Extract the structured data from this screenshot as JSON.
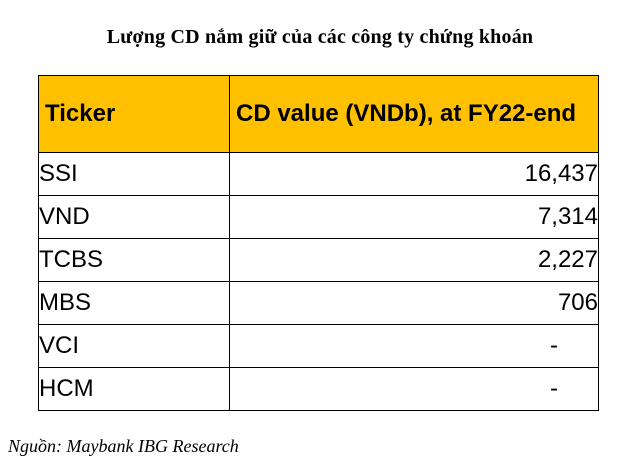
{
  "title": "Lượng CD nắm giữ của các công ty chứng khoán",
  "table": {
    "headers": [
      "Ticker",
      "CD value (VNDb), at FY22-end"
    ],
    "rows": [
      {
        "ticker": "SSI",
        "value": "16,437"
      },
      {
        "ticker": "VND",
        "value": "7,314"
      },
      {
        "ticker": "TCBS",
        "value": "2,227"
      },
      {
        "ticker": "MBS",
        "value": "706"
      },
      {
        "ticker": "VCI",
        "value": "-"
      },
      {
        "ticker": "HCM",
        "value": "-"
      }
    ]
  },
  "source": "Nguồn: Maybank IBG Research",
  "colors": {
    "header_bg": "#ffc000",
    "border": "#000000"
  }
}
